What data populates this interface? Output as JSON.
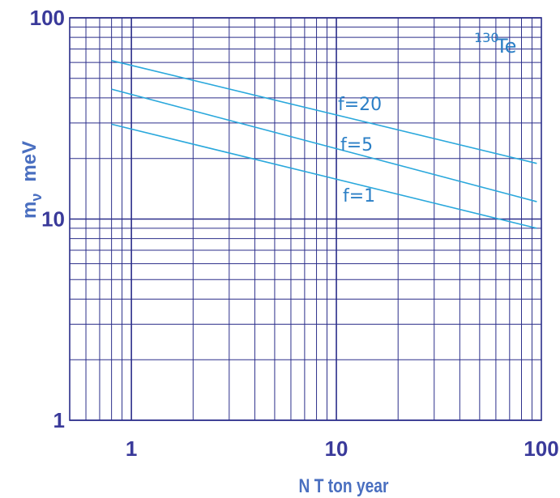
{
  "chart_data": {
    "type": "line",
    "x_scale": "log",
    "y_scale": "log",
    "xlim": [
      0.5,
      100
    ],
    "ylim": [
      1,
      100
    ],
    "grid": true,
    "xlabel": "N T ton year",
    "ylabel": {
      "main": "m",
      "subscript": "ν",
      "unit": "meV"
    },
    "annotation": {
      "sup": "130",
      "text": "Te"
    },
    "x_ticks": [
      {
        "value": 1,
        "label": "1"
      },
      {
        "value": 10,
        "label": "10"
      },
      {
        "value": 100,
        "label": "100"
      }
    ],
    "y_ticks": [
      {
        "value": 1,
        "label": "1"
      },
      {
        "value": 10,
        "label": "10"
      },
      {
        "value": 100,
        "label": "100"
      }
    ],
    "series": [
      {
        "name": "f=20",
        "x": [
          0.8,
          95
        ],
        "y": [
          61.3,
          18.9
        ]
      },
      {
        "name": "f=5",
        "x": [
          0.8,
          95
        ],
        "y": [
          44.2,
          12.2
        ]
      },
      {
        "name": "f=1",
        "x": [
          0.8,
          95
        ],
        "y": [
          29.6,
          9.0
        ]
      }
    ],
    "colors": {
      "line": "#2aa8dc",
      "grid": "#2b2e8a",
      "labels": "#2b7fc6",
      "ticks": "#3a3a9a",
      "axis_titles": "#4a6fc0"
    }
  }
}
